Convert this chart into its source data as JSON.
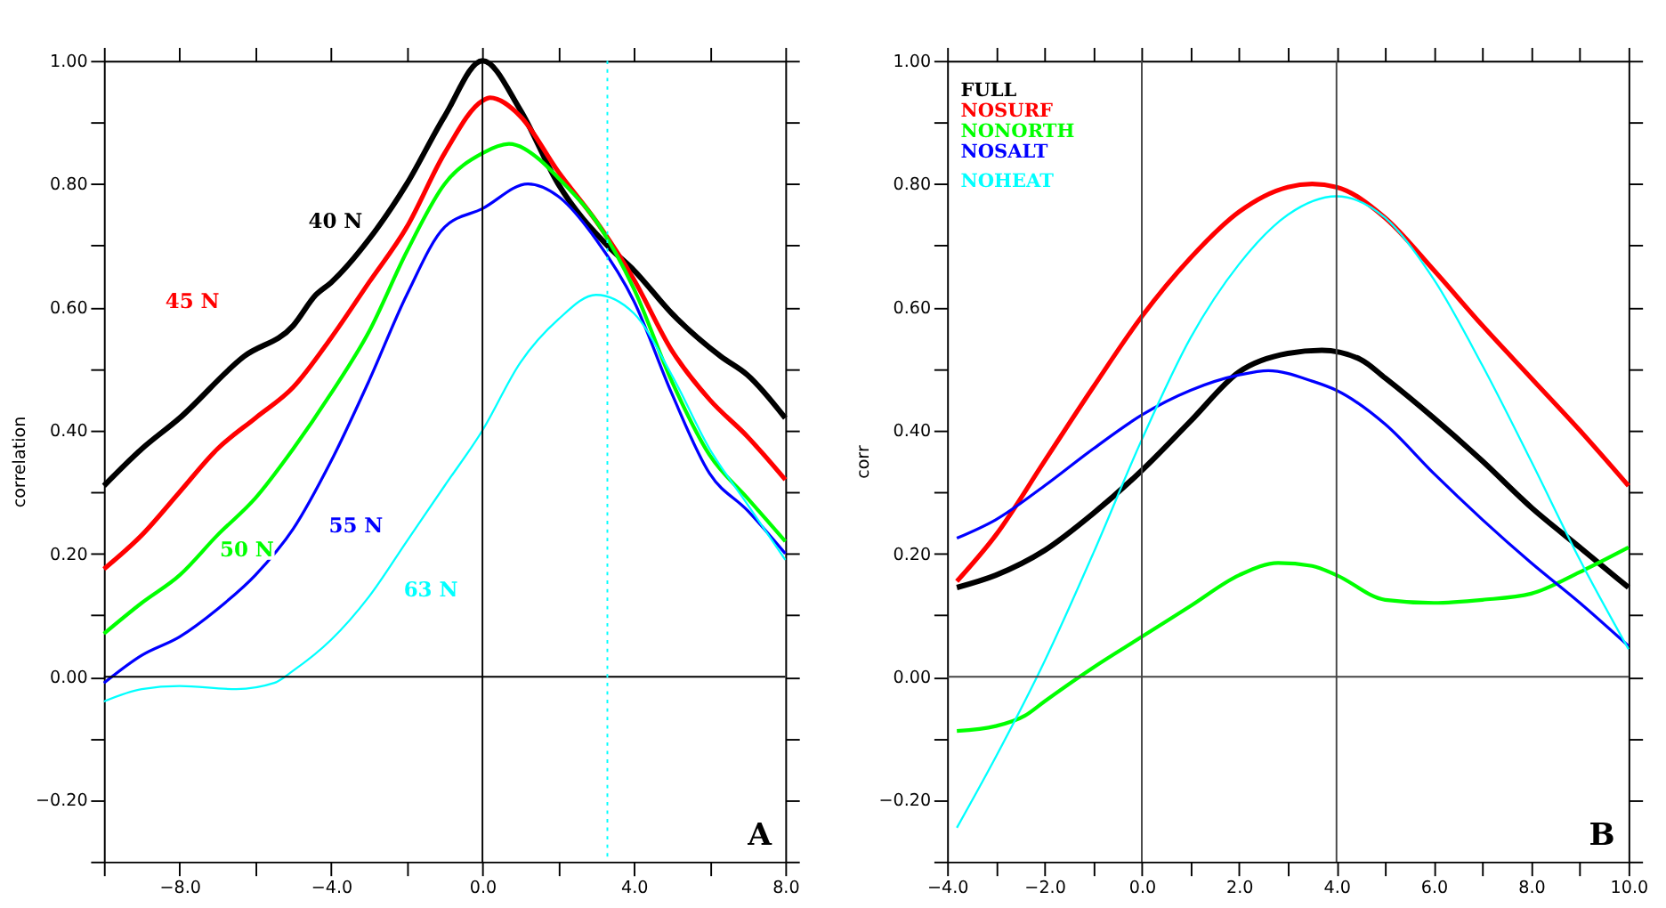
{
  "chart_data": [
    {
      "type": "line",
      "title": "A",
      "ylabel": "correlation",
      "legend": false,
      "grid": false,
      "marker": "none",
      "line_style": "solid",
      "xlim": [
        -10,
        8
      ],
      "ylim": [
        -0.3,
        1.0
      ],
      "xticks": [
        {
          "value": -10,
          "label": null
        },
        {
          "value": -8,
          "label": "−8.0"
        },
        {
          "value": -6,
          "label": null
        },
        {
          "value": -4,
          "label": "−4.0"
        },
        {
          "value": -2,
          "label": null
        },
        {
          "value": 0,
          "label": "0.0"
        },
        {
          "value": 2,
          "label": null
        },
        {
          "value": 4,
          "label": "4.0"
        },
        {
          "value": 6,
          "label": null
        },
        {
          "value": 8,
          "label": "8.0"
        }
      ],
      "yticks": [
        {
          "value": -0.3,
          "label": null
        },
        {
          "value": -0.2,
          "label": "−0.20"
        },
        {
          "value": -0.1,
          "label": null
        },
        {
          "value": 0,
          "label": "0.00"
        },
        {
          "value": 0.1,
          "label": null
        },
        {
          "value": 0.2,
          "label": "0.20"
        },
        {
          "value": 0.3,
          "label": null
        },
        {
          "value": 0.4,
          "label": "0.40"
        },
        {
          "value": 0.5,
          "label": null
        },
        {
          "value": 0.6,
          "label": "0.60"
        },
        {
          "value": 0.7,
          "label": null
        },
        {
          "value": 0.8,
          "label": "0.80"
        },
        {
          "value": 0.9,
          "label": null
        },
        {
          "value": 1.0,
          "label": "1.00"
        }
      ],
      "ref_lines": [
        {
          "axis": "x",
          "value": 0,
          "color": "#000000",
          "line_style": "solid"
        },
        {
          "axis": "y",
          "value": 0,
          "color": "#000000",
          "line_style": "solid"
        },
        {
          "axis": "x",
          "value": 3.3,
          "color": "#00ffff",
          "line_style": "dotted"
        }
      ],
      "series": [
        {
          "name": "40 N",
          "color": "#000000",
          "x": [
            -10,
            -9,
            -8,
            -6.3,
            -5,
            -4.4,
            -4,
            -3,
            -2,
            -1,
            0,
            1,
            2,
            3.3,
            4,
            5,
            6.3,
            7,
            8
          ],
          "values": [
            0.31,
            0.37,
            0.42,
            0.52,
            0.57,
            0.62,
            0.64,
            0.71,
            0.8,
            0.91,
            1.0,
            0.92,
            0.8,
            0.7,
            0.66,
            0.59,
            0.52,
            0.49,
            0.42
          ]
        },
        {
          "name": "45 N",
          "color": "#ff0000",
          "x": [
            -10,
            -9,
            -8,
            -7,
            -6,
            -5,
            -4,
            -3,
            -2,
            -1,
            0,
            0.2,
            1,
            2,
            3,
            4,
            5,
            6,
            7,
            8
          ],
          "values": [
            0.175,
            0.23,
            0.3,
            0.37,
            0.42,
            0.47,
            0.55,
            0.64,
            0.73,
            0.85,
            0.935,
            0.94,
            0.91,
            0.82,
            0.74,
            0.645,
            0.53,
            0.45,
            0.39,
            0.32
          ]
        },
        {
          "name": "50 N",
          "color": "#00ff00",
          "x": [
            -10,
            -9,
            -8,
            -7,
            -6,
            -5,
            -4,
            -3,
            -2,
            -1,
            0,
            0.7,
            1.5,
            2,
            3,
            4,
            5,
            6,
            7,
            8
          ],
          "values": [
            0.07,
            0.12,
            0.165,
            0.23,
            0.29,
            0.37,
            0.46,
            0.56,
            0.69,
            0.8,
            0.85,
            0.865,
            0.84,
            0.81,
            0.74,
            0.63,
            0.48,
            0.36,
            0.29,
            0.22
          ]
        },
        {
          "name": "55 N",
          "color": "#0000ff",
          "x": [
            -10,
            -9,
            -8,
            -7,
            -6,
            -5,
            -4,
            -3,
            -2,
            -1,
            0,
            1.2,
            2,
            3,
            4,
            5,
            6,
            7,
            8
          ],
          "values": [
            -0.01,
            0.035,
            0.065,
            0.11,
            0.165,
            0.24,
            0.35,
            0.48,
            0.62,
            0.73,
            0.76,
            0.8,
            0.78,
            0.71,
            0.61,
            0.46,
            0.33,
            0.27,
            0.2
          ]
        },
        {
          "name": "63 N",
          "color": "#00ffff",
          "x": [
            -10,
            -9,
            -8,
            -6.5,
            -5.5,
            -5,
            -4,
            -3,
            -2,
            -1,
            0,
            1,
            2,
            3,
            4,
            5,
            6,
            7,
            8
          ],
          "values": [
            -0.04,
            -0.02,
            -0.015,
            -0.02,
            -0.01,
            0.01,
            0.06,
            0.13,
            0.22,
            0.31,
            0.4,
            0.51,
            0.58,
            0.62,
            0.59,
            0.49,
            0.37,
            0.28,
            0.19
          ]
        }
      ]
    },
    {
      "type": "line",
      "title": "B",
      "ylabel": "corr",
      "legend": "top left",
      "grid": false,
      "marker": "none",
      "line_style": "solid",
      "xlim": [
        -4,
        10
      ],
      "ylim": [
        -0.3,
        1.0
      ],
      "xticks": [
        {
          "value": -4,
          "label": "−4.0"
        },
        {
          "value": -3,
          "label": null
        },
        {
          "value": -2,
          "label": "−2.0"
        },
        {
          "value": -1,
          "label": null
        },
        {
          "value": 0,
          "label": "0.0"
        },
        {
          "value": 1,
          "label": null
        },
        {
          "value": 2,
          "label": "2.0"
        },
        {
          "value": 3,
          "label": null
        },
        {
          "value": 4,
          "label": "4.0"
        },
        {
          "value": 5,
          "label": null
        },
        {
          "value": 6,
          "label": "6.0"
        },
        {
          "value": 7,
          "label": null
        },
        {
          "value": 8,
          "label": "8.0"
        },
        {
          "value": 9,
          "label": null
        },
        {
          "value": 10,
          "label": "10.0"
        }
      ],
      "yticks": [
        {
          "value": -0.3,
          "label": null
        },
        {
          "value": -0.2,
          "label": "−0.20"
        },
        {
          "value": -0.1,
          "label": null
        },
        {
          "value": 0,
          "label": "0.00"
        },
        {
          "value": 0.1,
          "label": null
        },
        {
          "value": 0.2,
          "label": "0.20"
        },
        {
          "value": 0.3,
          "label": null
        },
        {
          "value": 0.4,
          "label": "0.40"
        },
        {
          "value": 0.5,
          "label": null
        },
        {
          "value": 0.6,
          "label": "0.60"
        },
        {
          "value": 0.7,
          "label": null
        },
        {
          "value": 0.8,
          "label": "0.80"
        },
        {
          "value": 0.9,
          "label": null
        },
        {
          "value": 1.0,
          "label": "1.00"
        }
      ],
      "ref_lines": [
        {
          "axis": "x",
          "value": 0,
          "color": "#444444",
          "line_style": "solid"
        },
        {
          "axis": "x",
          "value": 4,
          "color": "#444444",
          "line_style": "solid"
        },
        {
          "axis": "y",
          "value": 0,
          "color": "#444444",
          "line_style": "solid"
        }
      ],
      "series": [
        {
          "name": "FULL",
          "color": "#000000",
          "x": [
            -3.8,
            -3,
            -2,
            -1,
            0,
            1,
            2,
            3,
            3.7,
            4.5,
            5,
            6,
            7,
            8,
            9,
            10
          ],
          "values": [
            0.145,
            0.165,
            0.205,
            0.265,
            0.335,
            0.415,
            0.495,
            0.525,
            0.53,
            0.515,
            0.485,
            0.42,
            0.35,
            0.275,
            0.21,
            0.145
          ]
        },
        {
          "name": "NOSURF",
          "color": "#ff0000",
          "x": [
            -3.8,
            -3,
            -2,
            -1,
            0,
            1,
            2,
            3,
            3.5,
            4,
            5,
            6,
            7,
            8,
            9,
            10
          ],
          "values": [
            0.155,
            0.23,
            0.35,
            0.47,
            0.585,
            0.68,
            0.755,
            0.795,
            0.8,
            0.795,
            0.745,
            0.66,
            0.57,
            0.485,
            0.4,
            0.31
          ]
        },
        {
          "name": "NONORTH",
          "color": "#00ff00",
          "x": [
            -3.8,
            -3,
            -2.4,
            -2,
            -1,
            0,
            1,
            2,
            2.8,
            3.5,
            4,
            5,
            6,
            7,
            8,
            9,
            10
          ],
          "values": [
            -0.088,
            -0.08,
            -0.063,
            -0.04,
            0.015,
            0.065,
            0.115,
            0.165,
            0.185,
            0.18,
            0.165,
            0.125,
            0.12,
            0.125,
            0.135,
            0.17,
            0.21
          ]
        },
        {
          "name": "NOSALT",
          "color": "#0000ff",
          "x": [
            -3.8,
            -3,
            -2,
            -1,
            0,
            1,
            2,
            2.6,
            3.5,
            4,
            5,
            6,
            7,
            8,
            9,
            10
          ],
          "values": [
            0.225,
            0.255,
            0.31,
            0.37,
            0.425,
            0.465,
            0.49,
            0.497,
            0.48,
            0.465,
            0.41,
            0.33,
            0.255,
            0.185,
            0.12,
            0.05
          ]
        },
        {
          "name": "NOHEAT",
          "color": "#00ffff",
          "x": [
            -3.8,
            -3,
            -2,
            -1,
            0,
            1,
            2,
            3,
            4,
            5,
            6,
            7,
            8,
            9,
            10
          ],
          "values": [
            -0.245,
            -0.13,
            0.025,
            0.2,
            0.385,
            0.55,
            0.67,
            0.75,
            0.78,
            0.745,
            0.645,
            0.505,
            0.35,
            0.19,
            0.045
          ]
        }
      ]
    }
  ]
}
